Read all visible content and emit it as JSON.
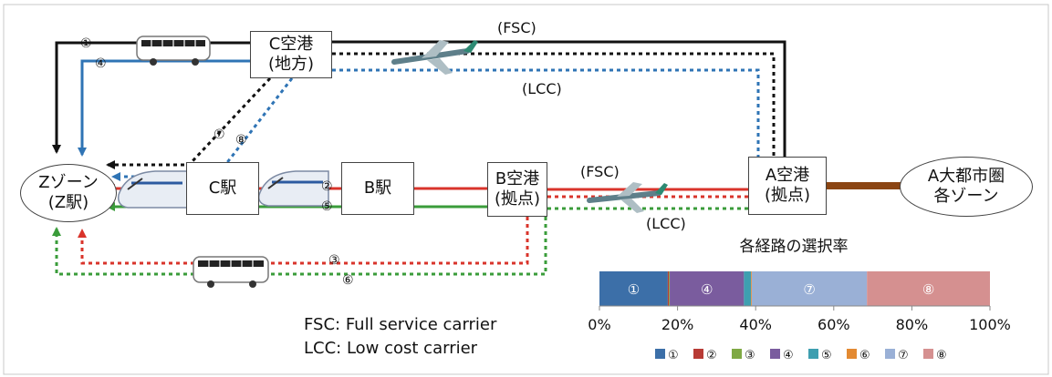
{
  "nodes": {
    "z_zone": {
      "line1": "Zゾーン",
      "line2": "(Z駅)"
    },
    "c_airport": {
      "line1": "C空港",
      "line2": "(地方)"
    },
    "c_station": {
      "label": "C駅"
    },
    "b_station": {
      "label": "B駅"
    },
    "b_airport": {
      "line1": "B空港",
      "line2": "(拠点)"
    },
    "a_airport": {
      "line1": "A空港",
      "line2": "(拠点)"
    },
    "a_metro": {
      "line1": "A大都市圏",
      "line2": "各ゾーン"
    }
  },
  "route_labels": {
    "top_fsc": "(FSC)",
    "top_lcc": "(LCC)",
    "mid_fsc": "(FSC)",
    "mid_lcc": "(LCC)",
    "r1": "①",
    "r4": "④",
    "r7": "⑦",
    "r8": "⑧",
    "r2": "②",
    "r5": "⑤",
    "r3": "③",
    "r6": "⑥"
  },
  "notes": {
    "fsc": "FSC: Full service carrier",
    "lcc": "LCC: Low cost carrier"
  },
  "route_colors": {
    "black": "#111111",
    "blue": "#2f74b5",
    "red": "#d9342b",
    "green": "#3a9c3a",
    "brown": "#8b4513"
  },
  "chart_data": {
    "type": "bar",
    "orientation": "horizontal-stacked",
    "title": "各経路の選択率",
    "categories": [
      "①",
      "②",
      "③",
      "④",
      "⑤",
      "⑥",
      "⑦",
      "⑧"
    ],
    "values_percent": [
      17.5,
      0.3,
      0.2,
      19.0,
      1.8,
      0.2,
      29.5,
      31.5
    ],
    "colors": [
      "#3c6fa8",
      "#b83b35",
      "#7fa944",
      "#7a5c9e",
      "#3e9fb0",
      "#e38a32",
      "#9ab0d6",
      "#d59090"
    ],
    "segment_labels": [
      "①",
      "",
      "",
      "④",
      "",
      "",
      "⑦",
      "⑧"
    ],
    "xlim": [
      0,
      100
    ],
    "xticks": [
      "0%",
      "20%",
      "40%",
      "60%",
      "80%",
      "100%"
    ],
    "legend": [
      "①",
      "②",
      "③",
      "④",
      "⑤",
      "⑥",
      "⑦",
      "⑧"
    ],
    "legend_position": "bottom"
  }
}
